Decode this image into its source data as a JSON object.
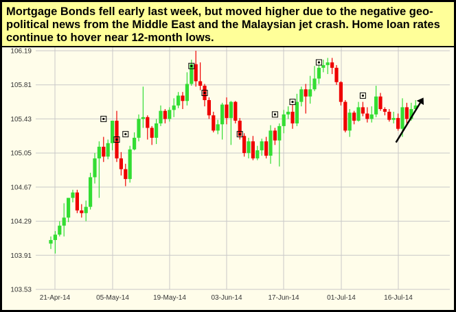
{
  "headline": "Mortgage Bonds fell early last week, but moved higher due to the negative geo-political news from the Middle East and the Malaysian jet crash. Home loan rates continue to hover near 12-month lows.",
  "colors": {
    "up": "#33dd33",
    "down": "#ee0000",
    "grid": "#c8c8c8",
    "background": "#fffdea",
    "header": "#ffff99"
  },
  "chart_data": {
    "type": "candlestick",
    "title": "",
    "xlabel": "",
    "ylabel": "",
    "ylim": [
      103.53,
      106.19
    ],
    "grid": true,
    "y_ticks": [
      "106.19",
      "105.81",
      "105.43",
      "105.05",
      "104.67",
      "104.29",
      "103.91",
      "103.53"
    ],
    "x_ticks": [
      "21-Apr-14",
      "05-May-14",
      "19-May-14",
      "03-Jun-14",
      "17-Jun-14",
      "01-Jul-14",
      "16-Jul-14"
    ],
    "series": [
      {
        "values": [
          [
            104.04,
            104.08,
            103.98,
            104.12
          ],
          [
            104.08,
            104.14,
            103.93,
            104.18
          ],
          [
            104.14,
            104.24,
            104.12,
            104.29
          ],
          [
            104.24,
            104.33,
            104.12,
            104.49
          ],
          [
            104.33,
            104.55,
            104.28,
            104.55
          ],
          [
            104.55,
            104.61,
            104.5,
            104.64
          ],
          [
            104.61,
            104.41,
            104.38,
            104.64
          ],
          [
            104.41,
            104.38,
            104.33,
            104.48
          ],
          [
            104.38,
            104.45,
            104.29,
            104.52
          ],
          [
            104.45,
            104.78,
            104.42,
            104.83
          ],
          [
            104.78,
            104.99,
            104.71,
            105.05
          ],
          [
            104.99,
            105.12,
            104.55,
            105.18
          ],
          [
            105.12,
            105.01,
            104.95,
            105.23
          ],
          [
            105.01,
            105.16,
            104.98,
            105.2
          ],
          [
            105.16,
            105.41,
            105.08,
            105.41
          ],
          [
            105.41,
            104.99,
            104.95,
            105.52
          ],
          [
            104.99,
            104.87,
            104.8,
            105.06
          ],
          [
            104.87,
            104.76,
            104.68,
            104.93
          ],
          [
            104.76,
            105.09,
            104.72,
            105.13
          ],
          [
            105.09,
            105.22,
            105.08,
            105.28
          ],
          [
            105.22,
            105.43,
            105.18,
            105.48
          ],
          [
            105.43,
            105.45,
            105.33,
            105.79
          ],
          [
            105.45,
            105.33,
            105.2,
            105.47
          ],
          [
            105.33,
            105.22,
            105.14,
            105.35
          ],
          [
            105.22,
            105.38,
            105.15,
            105.43
          ],
          [
            105.38,
            105.52,
            105.35,
            105.58
          ],
          [
            105.52,
            105.43,
            105.38,
            105.54
          ],
          [
            105.43,
            105.53,
            105.4,
            105.56
          ],
          [
            105.53,
            105.58,
            105.45,
            105.66
          ],
          [
            105.58,
            105.69,
            105.55,
            105.73
          ],
          [
            105.69,
            105.63,
            105.54,
            105.73
          ],
          [
            105.63,
            105.82,
            105.58,
            105.95
          ],
          [
            105.82,
            106.04,
            105.8,
            106.09
          ],
          [
            106.04,
            105.85,
            105.79,
            106.19
          ],
          [
            105.85,
            105.8,
            105.75,
            106.06
          ],
          [
            105.8,
            105.64,
            105.57,
            105.82
          ],
          [
            105.64,
            105.47,
            105.43,
            105.67
          ],
          [
            105.47,
            105.3,
            105.28,
            105.51
          ],
          [
            105.3,
            105.37,
            105.26,
            105.42
          ],
          [
            105.37,
            105.59,
            105.2,
            105.61
          ],
          [
            105.59,
            105.44,
            105.37,
            105.67
          ],
          [
            105.44,
            105.62,
            105.14,
            105.63
          ],
          [
            105.62,
            105.41,
            105.38,
            105.63
          ],
          [
            105.41,
            105.24,
            105.2,
            105.44
          ],
          [
            105.24,
            105.05,
            105.01,
            105.27
          ],
          [
            105.05,
            105.18,
            104.99,
            105.22
          ],
          [
            105.18,
            104.99,
            104.97,
            105.24
          ],
          [
            104.99,
            105.08,
            104.97,
            105.13
          ],
          [
            105.08,
            105.18,
            105.02,
            105.21
          ],
          [
            105.18,
            105.02,
            104.99,
            105.23
          ],
          [
            105.02,
            105.3,
            104.93,
            105.36
          ],
          [
            105.3,
            105.19,
            105.14,
            105.33
          ],
          [
            105.19,
            105.35,
            104.9,
            105.38
          ],
          [
            105.35,
            105.48,
            105.27,
            105.53
          ],
          [
            105.48,
            105.51,
            105.43,
            105.57
          ],
          [
            105.51,
            105.38,
            105.32,
            105.59
          ],
          [
            105.38,
            105.62,
            105.35,
            105.71
          ],
          [
            105.62,
            105.76,
            105.57,
            105.79
          ],
          [
            105.76,
            105.68,
            105.49,
            105.82
          ],
          [
            105.68,
            105.76,
            105.6,
            105.91
          ],
          [
            105.76,
            105.88,
            105.74,
            106.02
          ],
          [
            105.88,
            106.0,
            105.82,
            106.03
          ],
          [
            106.0,
            106.03,
            105.95,
            106.09
          ],
          [
            106.03,
            106.06,
            105.93,
            106.11
          ],
          [
            106.06,
            106.0,
            105.93,
            106.11
          ],
          [
            106.0,
            105.84,
            105.81,
            106.03
          ],
          [
            105.84,
            105.62,
            105.58,
            105.85
          ],
          [
            105.62,
            105.3,
            105.28,
            105.64
          ],
          [
            105.3,
            105.5,
            105.23,
            105.54
          ],
          [
            105.5,
            105.41,
            105.37,
            105.52
          ],
          [
            105.41,
            105.56,
            105.4,
            105.62
          ],
          [
            105.56,
            105.49,
            105.46,
            105.62
          ],
          [
            105.49,
            105.43,
            105.39,
            105.56
          ],
          [
            105.43,
            105.48,
            105.39,
            105.57
          ],
          [
            105.48,
            105.68,
            105.45,
            105.8
          ],
          [
            105.68,
            105.54,
            105.52,
            105.72
          ],
          [
            105.54,
            105.51,
            105.47,
            105.56
          ],
          [
            105.51,
            105.42,
            105.4,
            105.54
          ],
          [
            105.42,
            105.44,
            105.38,
            105.51
          ],
          [
            105.44,
            105.32,
            105.3,
            105.49
          ],
          [
            105.32,
            105.56,
            105.23,
            105.66
          ],
          [
            105.56,
            105.43,
            105.35,
            105.61
          ],
          [
            105.43,
            105.54,
            105.41,
            105.61
          ],
          [
            105.54,
            105.58,
            105.53,
            105.64
          ]
        ]
      }
    ],
    "boxed_markers": [
      {
        "candle": 12,
        "value": 105.43
      },
      {
        "candle": 15,
        "value": 105.2
      },
      {
        "candle": 17,
        "value": 105.26
      },
      {
        "candle": 32,
        "value": 106.02
      },
      {
        "candle": 35,
        "value": 105.72
      },
      {
        "candle": 43,
        "value": 105.26
      },
      {
        "candle": 51,
        "value": 105.48
      },
      {
        "candle": 55,
        "value": 105.62
      },
      {
        "candle": 61,
        "value": 106.06
      },
      {
        "candle": 71,
        "value": 105.69
      }
    ],
    "trend_arrow": {
      "from": [
        79,
        105.26
      ],
      "to": [
        84,
        105.66
      ]
    }
  }
}
